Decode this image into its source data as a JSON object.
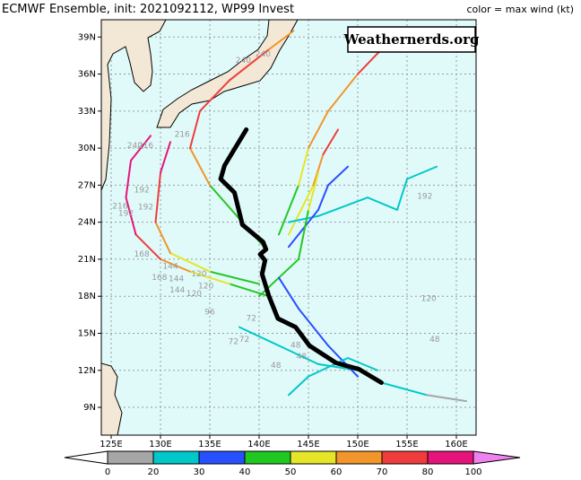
{
  "header": {
    "title": "ECMWF Ensemble, init: 2021092112, WP99 Invest",
    "legend_note": "color = max wind (kt)",
    "watermark": "Weathernerds.org"
  },
  "map": {
    "xlim": [
      124,
      162
    ],
    "ylim": [
      6.75,
      40.4
    ],
    "xticks": [
      {
        "value": 125,
        "label": "125E"
      },
      {
        "value": 130,
        "label": "130E"
      },
      {
        "value": 135,
        "label": "135E"
      },
      {
        "value": 140,
        "label": "140E"
      },
      {
        "value": 145,
        "label": "145E"
      },
      {
        "value": 150,
        "label": "150E"
      },
      {
        "value": 155,
        "label": "155E"
      },
      {
        "value": 160,
        "label": "160E"
      }
    ],
    "yticks": [
      {
        "value": 9,
        "label": "9N"
      },
      {
        "value": 12,
        "label": "12N"
      },
      {
        "value": 15,
        "label": "15N"
      },
      {
        "value": 18,
        "label": "18N"
      },
      {
        "value": 21,
        "label": "21N"
      },
      {
        "value": 24,
        "label": "24N"
      },
      {
        "value": 27,
        "label": "27N"
      },
      {
        "value": 30,
        "label": "30N"
      },
      {
        "value": 33,
        "label": "33N"
      },
      {
        "value": 36,
        "label": "36N"
      },
      {
        "value": 39,
        "label": "39N"
      }
    ],
    "grid": true
  },
  "colorbar": {
    "levels": [
      0,
      20,
      30,
      40,
      50,
      60,
      70,
      80,
      100
    ],
    "colors": [
      "#a6a6a6",
      "#00c8c8",
      "#2850ff",
      "#22c822",
      "#e6e628",
      "#f0962a",
      "#f03c3c",
      "#e6147a"
    ],
    "under_color": "#ffffff",
    "over_color": "#ee82ee"
  },
  "mean_track": {
    "color": "#000000",
    "lon": [
      152.4,
      150.1,
      147.8,
      145.1,
      143.7,
      141.9,
      141.0,
      140.3,
      140.6,
      140.1,
      140.7,
      140.4,
      138.3,
      137.5,
      136.1,
      136.5,
      138.7
    ],
    "lat": [
      11.0,
      12.1,
      12.6,
      14.0,
      15.5,
      16.2,
      18.0,
      19.8,
      20.9,
      21.4,
      21.8,
      22.4,
      23.8,
      26.4,
      27.5,
      28.6,
      31.5
    ]
  },
  "tracks": [
    {
      "lon": [
        140.5,
        135,
        133,
        134,
        137,
        141,
        143.5
      ],
      "lat": [
        22,
        27,
        30,
        33,
        35.5,
        38,
        39.5
      ],
      "wind": [
        40,
        60,
        70,
        70,
        70,
        65,
        65
      ]
    },
    {
      "lon": [
        141,
        137,
        133,
        130,
        127.5,
        126.5,
        127,
        129
      ],
      "lat": [
        18,
        19,
        20,
        21,
        23,
        26,
        29,
        31
      ],
      "wind": [
        40,
        50,
        60,
        70,
        80,
        85,
        80,
        75
      ]
    },
    {
      "lon": [
        140,
        135,
        131,
        129.5,
        130,
        131
      ],
      "lat": [
        19,
        20,
        21.5,
        24,
        28,
        30.5
      ],
      "wind": [
        45,
        55,
        65,
        75,
        80,
        75
      ]
    },
    {
      "lon": [
        142,
        144,
        145,
        147,
        150,
        153
      ],
      "lat": [
        23,
        27,
        30,
        33,
        36,
        38.5
      ],
      "wind": [
        45,
        55,
        60,
        65,
        70,
        65
      ]
    },
    {
      "lon": [
        143,
        145.5,
        146.5,
        148
      ],
      "lat": [
        23,
        27,
        29.5,
        31.5
      ],
      "wind": [
        50,
        60,
        70,
        70
      ]
    },
    {
      "lon": [
        143,
        146,
        151,
        154,
        155,
        158
      ],
      "lat": [
        24,
        24.5,
        26,
        25,
        27.5,
        28.5
      ],
      "wind": [
        25,
        25,
        25,
        20,
        25,
        25
      ]
    },
    {
      "lon": [
        143,
        146,
        147,
        149
      ],
      "lat": [
        22,
        25,
        27,
        28.5
      ],
      "wind": [
        35,
        35,
        35,
        30
      ]
    },
    {
      "lon": [
        140,
        144,
        145,
        146
      ],
      "lat": [
        18,
        21,
        25,
        28
      ],
      "wind": [
        40,
        45,
        50,
        45
      ]
    },
    {
      "lon": [
        152.4,
        157,
        161
      ],
      "lat": [
        11,
        10,
        9.5
      ],
      "wind": [
        20,
        15,
        10
      ]
    },
    {
      "lon": [
        150,
        146,
        142,
        138
      ],
      "lat": [
        12,
        12.5,
        14,
        15.5
      ],
      "wind": [
        25,
        25,
        22,
        20
      ]
    },
    {
      "lon": [
        150,
        147,
        144,
        142
      ],
      "lat": [
        11.5,
        14,
        17,
        19.5
      ],
      "wind": [
        30,
        30,
        35,
        35
      ]
    },
    {
      "lon": [
        152,
        149,
        145,
        143
      ],
      "lat": [
        12,
        13,
        11.5,
        10
      ],
      "wind": [
        25,
        25,
        22,
        20
      ]
    }
  ],
  "hour_labels": [
    {
      "text": "240",
      "lon": 138.4,
      "lat": 37.1
    },
    {
      "text": "240",
      "lon": 140.4,
      "lat": 37.6
    },
    {
      "text": "216",
      "lon": 132.2,
      "lat": 31.1
    },
    {
      "text": "240",
      "lon": 127.4,
      "lat": 30.2
    },
    {
      "text": "216",
      "lon": 128.5,
      "lat": 30.2
    },
    {
      "text": "192",
      "lon": 128.1,
      "lat": 26.6
    },
    {
      "text": "216",
      "lon": 125.9,
      "lat": 25.3
    },
    {
      "text": "192",
      "lon": 126.5,
      "lat": 24.7
    },
    {
      "text": "192",
      "lon": 128.5,
      "lat": 25.2
    },
    {
      "text": "168",
      "lon": 128.1,
      "lat": 21.4
    },
    {
      "text": "144",
      "lon": 131.0,
      "lat": 20.4
    },
    {
      "text": "168",
      "lon": 129.9,
      "lat": 19.5
    },
    {
      "text": "144",
      "lon": 131.6,
      "lat": 19.4
    },
    {
      "text": "120",
      "lon": 133.9,
      "lat": 19.8
    },
    {
      "text": "144",
      "lon": 131.7,
      "lat": 18.5
    },
    {
      "text": "120",
      "lon": 133.4,
      "lat": 18.2
    },
    {
      "text": "120",
      "lon": 134.6,
      "lat": 18.8
    },
    {
      "text": "96",
      "lon": 135.0,
      "lat": 16.7
    },
    {
      "text": "72",
      "lon": 139.2,
      "lat": 16.2
    },
    {
      "text": "72",
      "lon": 137.4,
      "lat": 14.3
    },
    {
      "text": "72",
      "lon": 138.5,
      "lat": 14.5
    },
    {
      "text": "48",
      "lon": 143.7,
      "lat": 14.0
    },
    {
      "text": "48",
      "lon": 144.3,
      "lat": 13.1
    },
    {
      "text": "48",
      "lon": 141.7,
      "lat": 12.4
    },
    {
      "text": "192",
      "lon": 156.8,
      "lat": 26.1
    },
    {
      "text": "120",
      "lon": 157.2,
      "lat": 17.8
    },
    {
      "text": "48",
      "lon": 157.8,
      "lat": 14.5
    }
  ]
}
